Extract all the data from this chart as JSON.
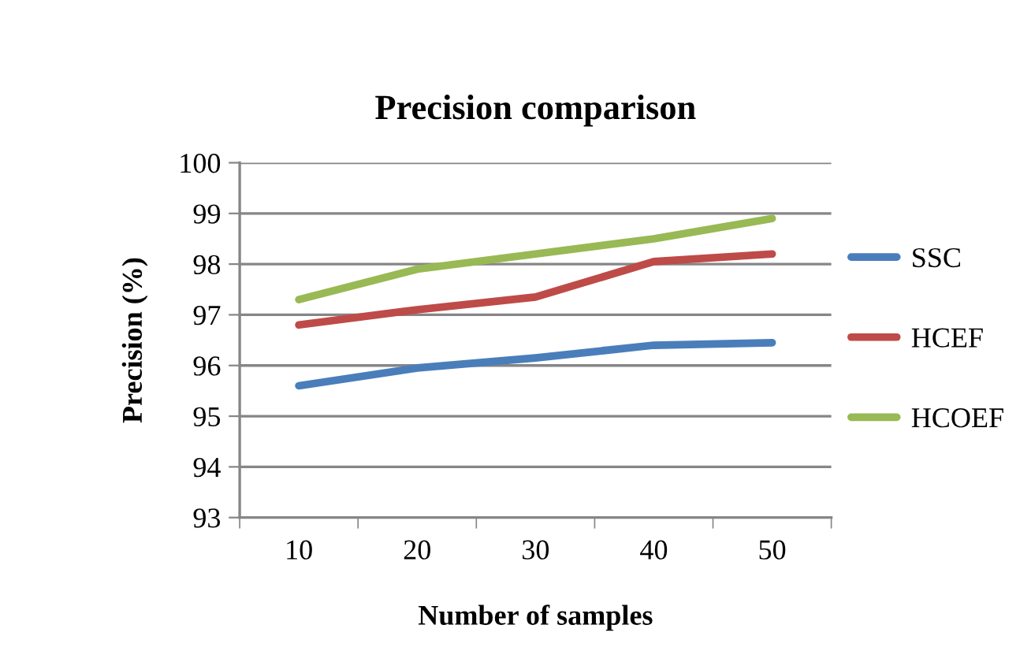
{
  "chart_data": {
    "type": "line",
    "title": "Precision comparison",
    "xlabel": "Number of samples",
    "ylabel": "Precision (%)",
    "categories": [
      "10",
      "20",
      "30",
      "40",
      "50"
    ],
    "series": [
      {
        "name": "SSC",
        "color": "#4a7ebb",
        "values": [
          95.6,
          95.95,
          96.15,
          96.4,
          96.45
        ]
      },
      {
        "name": "HCEF",
        "color": "#be4b48",
        "values": [
          96.8,
          97.1,
          97.35,
          98.05,
          98.2
        ]
      },
      {
        "name": "HCOEF",
        "color": "#98b954",
        "values": [
          97.3,
          97.9,
          98.2,
          98.5,
          98.9
        ]
      }
    ],
    "ylim": [
      93,
      100
    ],
    "yticks": [
      93,
      94,
      95,
      96,
      97,
      98,
      99,
      100
    ],
    "grid": "y",
    "legend": "right",
    "marker": "none",
    "line_style": "solid"
  }
}
